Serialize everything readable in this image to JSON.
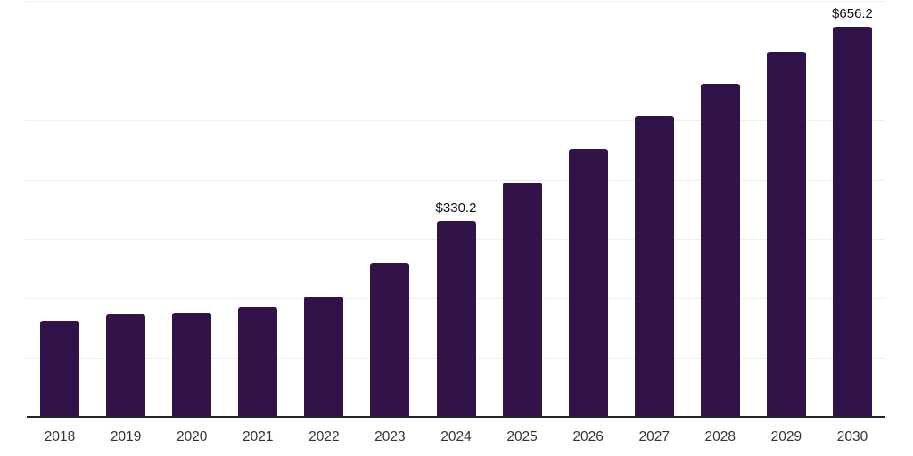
{
  "chart_data": {
    "type": "bar",
    "title": "",
    "xlabel": "",
    "ylabel": "",
    "categories": [
      "2018",
      "2019",
      "2020",
      "2021",
      "2022",
      "2023",
      "2024",
      "2025",
      "2026",
      "2027",
      "2028",
      "2029",
      "2030"
    ],
    "values": [
      163.1,
      173.5,
      176.4,
      185.6,
      203.4,
      260.1,
      330.2,
      394.7,
      451.6,
      507.2,
      560.8,
      614.5,
      656.2
    ],
    "data_labels": {
      "2024": "$330.2",
      "2030": "$656.2"
    },
    "ylim": [
      0,
      700
    ],
    "gridline_step": 100,
    "grid": true,
    "legend_shown": false,
    "y_tick_labels_shown": false,
    "colors": {
      "bar": "#321349",
      "gridline": "#efefef",
      "axis_line": "#262626",
      "tick_label": "#333333",
      "data_label": "#111111",
      "background": "#ffffff"
    }
  }
}
